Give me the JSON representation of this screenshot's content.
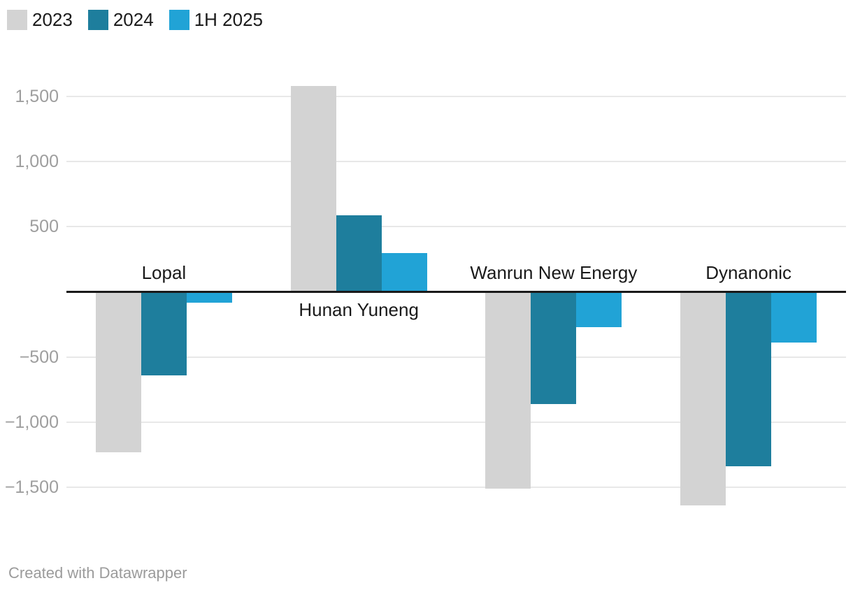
{
  "legend": {
    "items": [
      {
        "label": "2023",
        "color": "#d3d3d3"
      },
      {
        "label": "2024",
        "color": "#1e7e9d"
      },
      {
        "label": "1H 2025",
        "color": "#21a3d6"
      }
    ]
  },
  "footer": {
    "credit": "Created with Datawrapper"
  },
  "colors": {
    "background": "#ffffff",
    "grid": "#e8e8e8",
    "baseline": "#1a1a1a",
    "tick_text": "#9e9e9e",
    "label_text": "#1a1a1a",
    "credit_text": "#9b9b9b"
  },
  "chart_data": {
    "type": "bar",
    "title": "",
    "xlabel": "",
    "ylabel": "",
    "categories": [
      "Lopal",
      "Hunan Yuneng",
      "Wanrun New Energy",
      "Dynanonic"
    ],
    "series": [
      {
        "name": "2023",
        "color": "#d3d3d3",
        "values": [
          -1230,
          1580,
          -1510,
          -1640
        ]
      },
      {
        "name": "2024",
        "color": "#1e7e9d",
        "values": [
          -640,
          590,
          -860,
          -1340
        ]
      },
      {
        "name": "1H 2025",
        "color": "#21a3d6",
        "values": [
          -85,
          300,
          -270,
          -390
        ]
      }
    ],
    "yticks": [
      1500,
      1000,
      500,
      -500,
      -1000,
      -1500
    ],
    "ytick_labels": [
      "1,500",
      "1,000",
      "500",
      "−500",
      "−1,000",
      "−1,500"
    ],
    "ylim": [
      -1750,
      1800
    ],
    "grid": true,
    "baseline_at_zero": true,
    "legend_position": "top-left"
  }
}
